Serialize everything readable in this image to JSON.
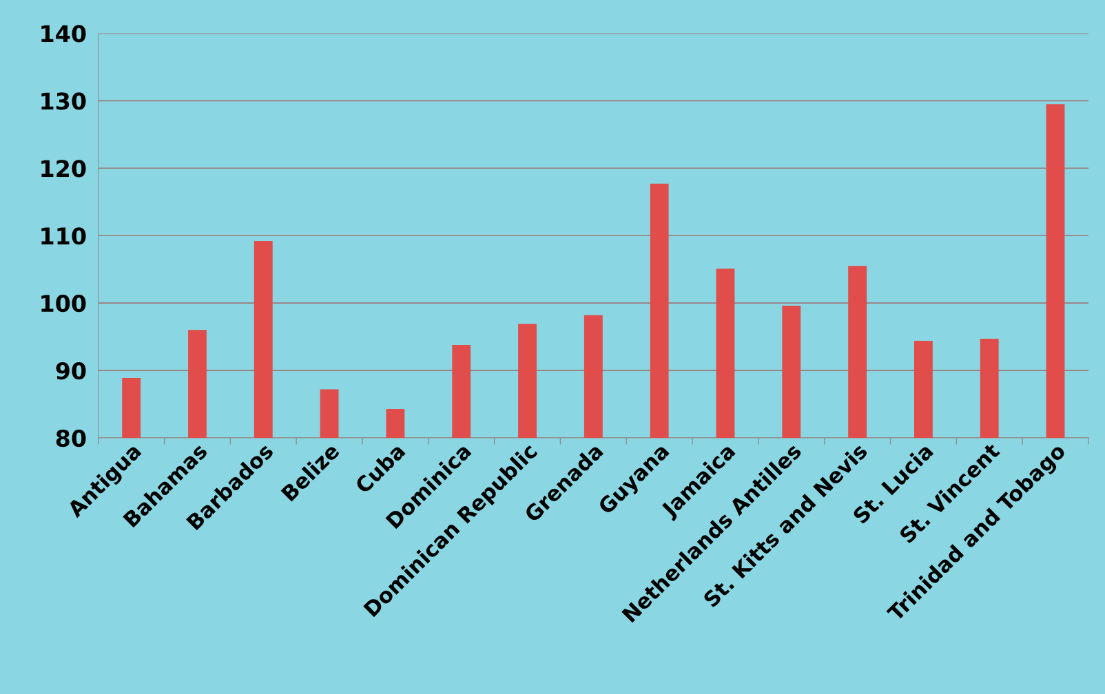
{
  "chart_data": {
    "type": "bar",
    "categories": [
      "Antigua",
      "Bahamas",
      "Barbados",
      "Belize",
      "Cuba",
      "Dominica",
      "Dominican Republic",
      "Grenada",
      "Guyana",
      "Jamaica",
      "Netherlands Antilles",
      "St. Kitts and Nevis",
      "St. Lucia",
      "St. Vincent",
      "Trinidad and Tobago"
    ],
    "values": [
      88.9,
      96.0,
      109.2,
      87.2,
      84.3,
      93.8,
      96.9,
      98.2,
      117.7,
      105.1,
      99.6,
      105.5,
      94.4,
      94.7,
      129.5
    ],
    "color": "#e04d4a",
    "ylim": [
      80,
      140
    ],
    "yticks": [
      80,
      90,
      100,
      110,
      120,
      130,
      140
    ],
    "grid": "y"
  }
}
